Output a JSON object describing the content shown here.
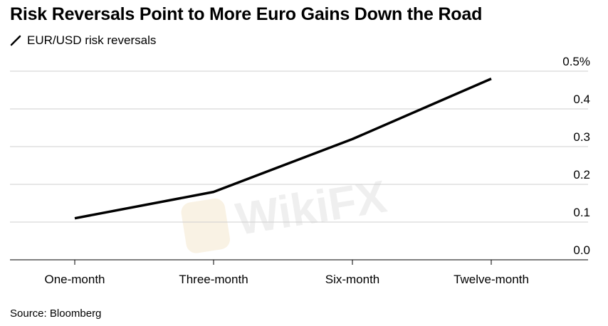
{
  "chart_data": {
    "type": "line",
    "title": "Risk Reversals Point to More Euro Gains Down the Road",
    "categories": [
      "One-month",
      "Three-month",
      "Six-month",
      "Twelve-month"
    ],
    "series": [
      {
        "name": "EUR/USD risk reversals",
        "values": [
          0.11,
          0.18,
          0.32,
          0.48
        ],
        "color": "#000000"
      }
    ],
    "ylim": [
      0,
      0.5
    ],
    "yticks": [
      0.0,
      0.1,
      0.2,
      0.3,
      0.4,
      0.5
    ],
    "ytick_labels": [
      "0.0",
      "0.1",
      "0.2",
      "0.3",
      "0.4",
      "0.5%"
    ],
    "y_axis_position": "right",
    "grid": true,
    "legend_position": "top-left",
    "source": "Source: Bloomberg",
    "watermark": "WikiFX"
  }
}
